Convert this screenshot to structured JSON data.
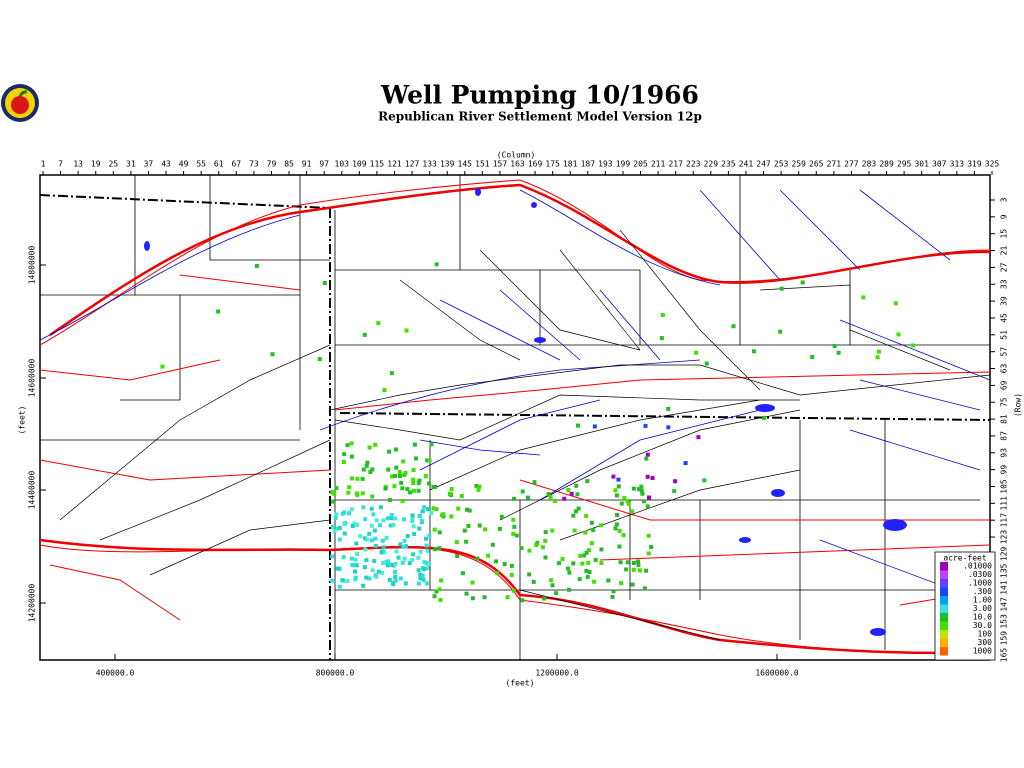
{
  "header": {
    "title": "Well Pumping 10/1966",
    "subtitle": "Republican River Settlement Model Version 12p"
  },
  "top_axis": {
    "label": "(Column)",
    "ticks": [
      "1",
      "7",
      "13",
      "19",
      "25",
      "31",
      "37",
      "43",
      "49",
      "55",
      "61",
      "67",
      "73",
      "79",
      "85",
      "91",
      "97",
      "103",
      "109",
      "115",
      "121",
      "127",
      "133",
      "139",
      "145",
      "151",
      "157",
      "163",
      "169",
      "175",
      "181",
      "187",
      "193",
      "199",
      "205",
      "211",
      "217",
      "223",
      "229",
      "235",
      "241",
      "247",
      "253",
      "259",
      "265",
      "271",
      "277",
      "283",
      "289",
      "295",
      "301",
      "307",
      "313",
      "319",
      "325"
    ]
  },
  "right_axis": {
    "label": "(Row)",
    "ticks": [
      "3",
      "9",
      "15",
      "21",
      "27",
      "33",
      "39",
      "45",
      "51",
      "57",
      "63",
      "69",
      "75",
      "81",
      "87",
      "93",
      "99",
      "105",
      "111",
      "117",
      "123",
      "129",
      "135",
      "141",
      "147",
      "153",
      "159",
      "165"
    ]
  },
  "left_axis": {
    "label": "(feet)",
    "ticks": [
      "14800000",
      "14600000",
      "14400000",
      "14200000"
    ]
  },
  "bottom_axis": {
    "label": "(feet)",
    "ticks": [
      "400000.0",
      "800000.0",
      "1200000.0",
      "1600000.0"
    ]
  },
  "legend": {
    "title": "acre-feet",
    "labels": [
      ".01000",
      ".0300",
      ".1000",
      ".300",
      "1.00",
      "3.00",
      "10.0",
      "30.0",
      "100",
      "300",
      "1000"
    ]
  }
}
